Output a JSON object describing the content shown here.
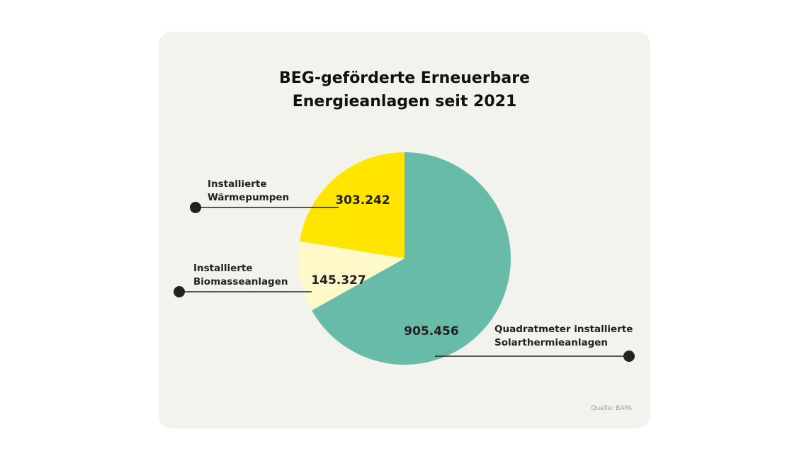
{
  "chart_data": {
    "type": "pie",
    "title": "BEG-geförderte Erneuerbare Energieanlagen seit 2021",
    "categories": [
      "Quadratmeter installierte Solarthermieanlagen",
      "Installierte Biomasseanlagen",
      "Installierte Wärmepumpen"
    ],
    "values": [
      905456,
      145327,
      303242
    ],
    "value_labels": [
      "905.456",
      "145.327",
      "303.242"
    ],
    "colors": [
      "#68bba9",
      "#fff8c8",
      "#ffe500"
    ],
    "source": "Quelle: BAFA"
  }
}
